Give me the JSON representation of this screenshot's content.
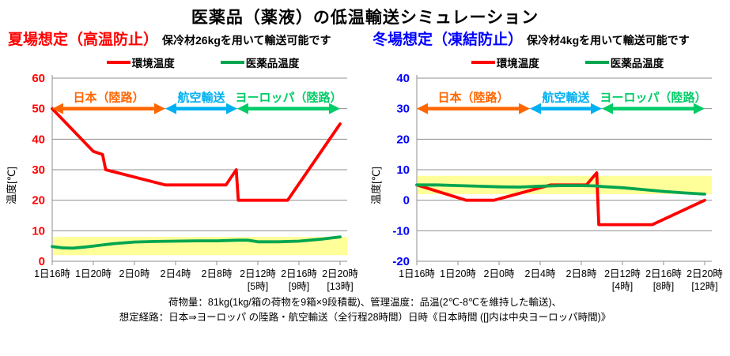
{
  "page": {
    "title": "医薬品（薬液）の低温輸送シミュレーション"
  },
  "footer": {
    "line1": "荷物量：81kg(1kg/箱の荷物を9箱×9段積載)、管理温度：品温(2℃-8℃を維持した輸送)、",
    "line2": "想定経路：日本⇒ヨーロッパ の陸路・航空輸送（全行程28時間）日時《日本時間 ([]内は中央ヨーロッパ時間)》"
  },
  "chart_data": [
    {
      "type": "line",
      "title": "夏場想定（高温防止）",
      "title_color": "#FF0000",
      "subtitle": "保冷材26kgを用いて輸送可能です",
      "ylabel": "温度[℃]",
      "ylim": [
        0,
        60
      ],
      "yticks": [
        0,
        10,
        20,
        30,
        40,
        50,
        60
      ],
      "ytick_color": "#FF0000",
      "grid": true,
      "grid_color": "#8f8f8f",
      "legend_position": "top",
      "total_hours": 28,
      "x_ticklabels": [
        "1日16時",
        "1日20時",
        "2日0時",
        "2日4時",
        "2日8時",
        "2日12時",
        "2日16時",
        "2日20時"
      ],
      "x_sublabels": [
        "",
        "",
        "",
        "",
        "",
        "[5時]",
        "[9時]",
        "[13時]"
      ],
      "safe_band": {
        "from": 2,
        "to": 8,
        "color": "#FFFF99"
      },
      "series": [
        {
          "name": "環境温度",
          "color": "#FF0000",
          "points": [
            [
              0,
              50
            ],
            [
              4,
              36
            ],
            [
              4.9,
              35
            ],
            [
              5.2,
              30
            ],
            [
              11,
              25
            ],
            [
              16.9,
              25
            ],
            [
              17.9,
              30
            ],
            [
              18.1,
              20
            ],
            [
              22.9,
              20
            ],
            [
              28,
              45
            ]
          ]
        },
        {
          "name": "医薬品温度",
          "color": "#00A550",
          "points": [
            [
              0,
              4.8
            ],
            [
              1,
              4.4
            ],
            [
              2,
              4.3
            ],
            [
              3,
              4.6
            ],
            [
              4,
              5.0
            ],
            [
              6,
              5.8
            ],
            [
              8,
              6.3
            ],
            [
              10,
              6.5
            ],
            [
              12,
              6.6
            ],
            [
              14,
              6.7
            ],
            [
              16,
              6.7
            ],
            [
              18,
              6.9
            ],
            [
              19,
              6.9
            ],
            [
              20,
              6.4
            ],
            [
              22,
              6.4
            ],
            [
              24,
              6.6
            ],
            [
              26,
              7.2
            ],
            [
              28,
              8.0
            ]
          ]
        }
      ],
      "route_annotations": {
        "y": 50,
        "segments": [
          {
            "label": "日本（陸路）",
            "color": "#FF6600",
            "from_hour": 0,
            "to_hour": 11
          },
          {
            "label": "航空輸送",
            "color": "#00B0F0",
            "from_hour": 11,
            "to_hour": 18
          },
          {
            "label": "ヨーロッパ（陸路）",
            "color": "#00CC66",
            "from_hour": 18,
            "to_hour": 28
          }
        ]
      }
    },
    {
      "type": "line",
      "title": "冬場想定（凍結防止）",
      "title_color": "#0000FF",
      "subtitle": "保冷材4kgを用いて輸送可能です",
      "ylabel": "温度[℃]",
      "ylim": [
        -20,
        40
      ],
      "yticks": [
        -20,
        -10,
        0,
        10,
        20,
        30,
        40
      ],
      "ytick_color": "#0000FF",
      "grid": true,
      "grid_color": "#8f8f8f",
      "legend_position": "top",
      "total_hours": 28,
      "x_ticklabels": [
        "1日16時",
        "1日20時",
        "2日0時",
        "2日4時",
        "2日8時",
        "2日12時",
        "2日16時",
        "2日20時"
      ],
      "x_sublabels": [
        "",
        "",
        "",
        "",
        "",
        "[4時]",
        "[8時]",
        "[12時]"
      ],
      "safe_band": {
        "from": 2,
        "to": 8,
        "color": "#FFFF99"
      },
      "series": [
        {
          "name": "環境温度",
          "color": "#FF0000",
          "points": [
            [
              0,
              5
            ],
            [
              4.8,
              0
            ],
            [
              7.5,
              0
            ],
            [
              13,
              5
            ],
            [
              16.5,
              5
            ],
            [
              17.5,
              9
            ],
            [
              17.7,
              -8
            ],
            [
              22.9,
              -8
            ],
            [
              28,
              0
            ]
          ]
        },
        {
          "name": "医薬品温度",
          "color": "#00A550",
          "points": [
            [
              0,
              5
            ],
            [
              2,
              5
            ],
            [
              4,
              4.8
            ],
            [
              6,
              4.6
            ],
            [
              8,
              4.4
            ],
            [
              10,
              4.3
            ],
            [
              12,
              4.6
            ],
            [
              14,
              4.8
            ],
            [
              16,
              4.8
            ],
            [
              17.5,
              4.7
            ],
            [
              18,
              4.5
            ],
            [
              20,
              4.1
            ],
            [
              22,
              3.5
            ],
            [
              24,
              2.9
            ],
            [
              26,
              2.4
            ],
            [
              28,
              2.0
            ]
          ]
        }
      ],
      "route_annotations": {
        "y": 30,
        "segments": [
          {
            "label": "日本（陸路）",
            "color": "#FF6600",
            "from_hour": 0,
            "to_hour": 11
          },
          {
            "label": "航空輸送",
            "color": "#00B0F0",
            "from_hour": 11,
            "to_hour": 18
          },
          {
            "label": "ヨーロッパ（陸路）",
            "color": "#00CC66",
            "from_hour": 18,
            "to_hour": 28
          }
        ]
      }
    }
  ]
}
